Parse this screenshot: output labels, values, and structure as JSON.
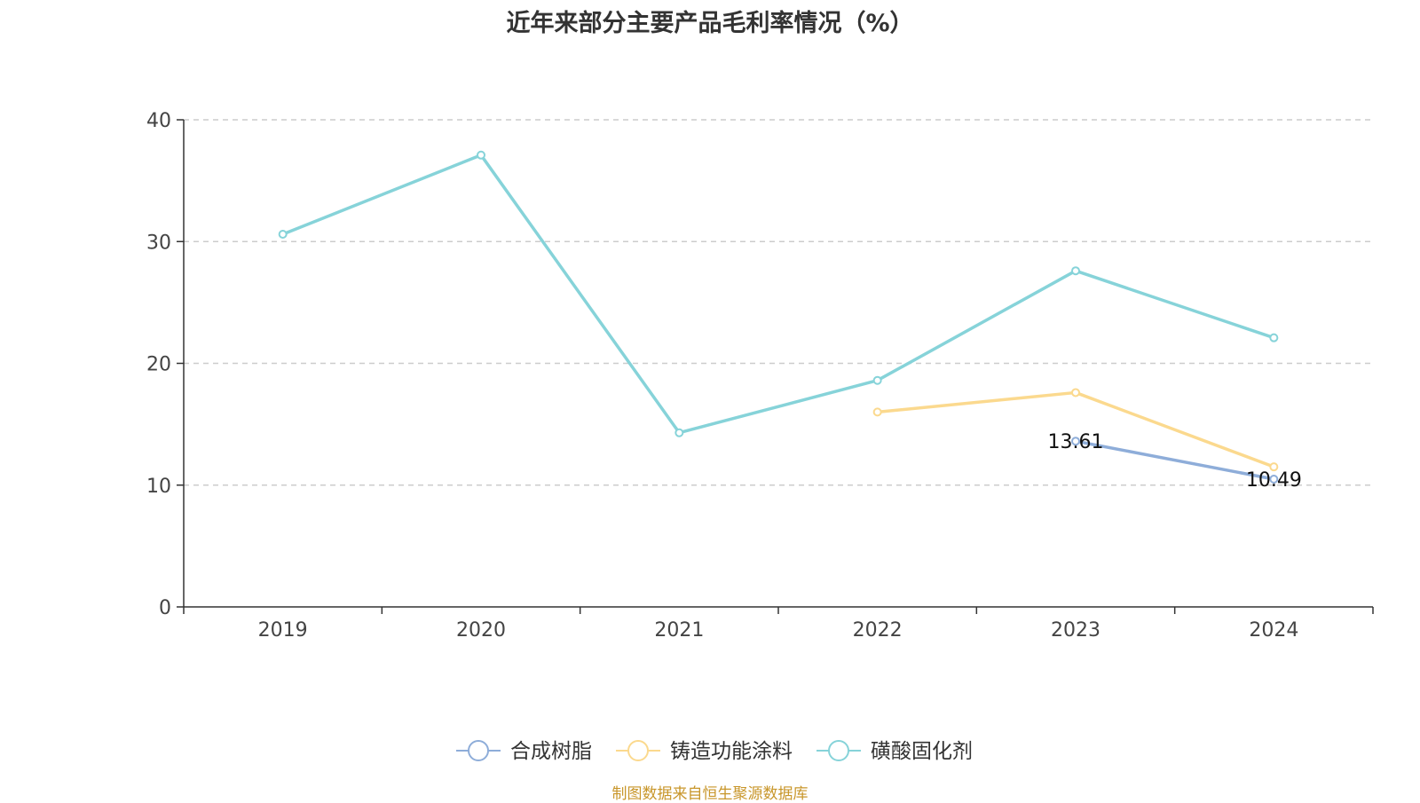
{
  "title": "近年来部分主要产品毛利率情况（%）",
  "source": "制图数据来自恒生聚源数据库",
  "chart_data": {
    "type": "line",
    "title": "近年来部分主要产品毛利率情况（%）",
    "xlabel": "",
    "ylabel": "",
    "categories": [
      "2019",
      "2020",
      "2021",
      "2022",
      "2023",
      "2024"
    ],
    "ylim": [
      0,
      40
    ],
    "yticks": [
      0,
      10,
      20,
      30,
      40
    ],
    "grid": true,
    "legend_position": "bottom",
    "series": [
      {
        "name": "合成树脂",
        "color": "#8eadd9",
        "values": [
          null,
          null,
          null,
          null,
          13.61,
          10.49
        ],
        "labels": [
          null,
          null,
          null,
          null,
          "13.61",
          "10.49"
        ]
      },
      {
        "name": "铸造功能涂料",
        "color": "#fbd98e",
        "values": [
          null,
          null,
          null,
          16.0,
          17.6,
          11.5
        ],
        "labels": [
          null,
          null,
          null,
          null,
          null,
          null
        ]
      },
      {
        "name": "磺酸固化剂",
        "color": "#86d3d9",
        "values": [
          30.6,
          37.1,
          14.3,
          18.6,
          27.6,
          22.1
        ],
        "labels": [
          null,
          null,
          null,
          null,
          null,
          null
        ]
      }
    ]
  }
}
